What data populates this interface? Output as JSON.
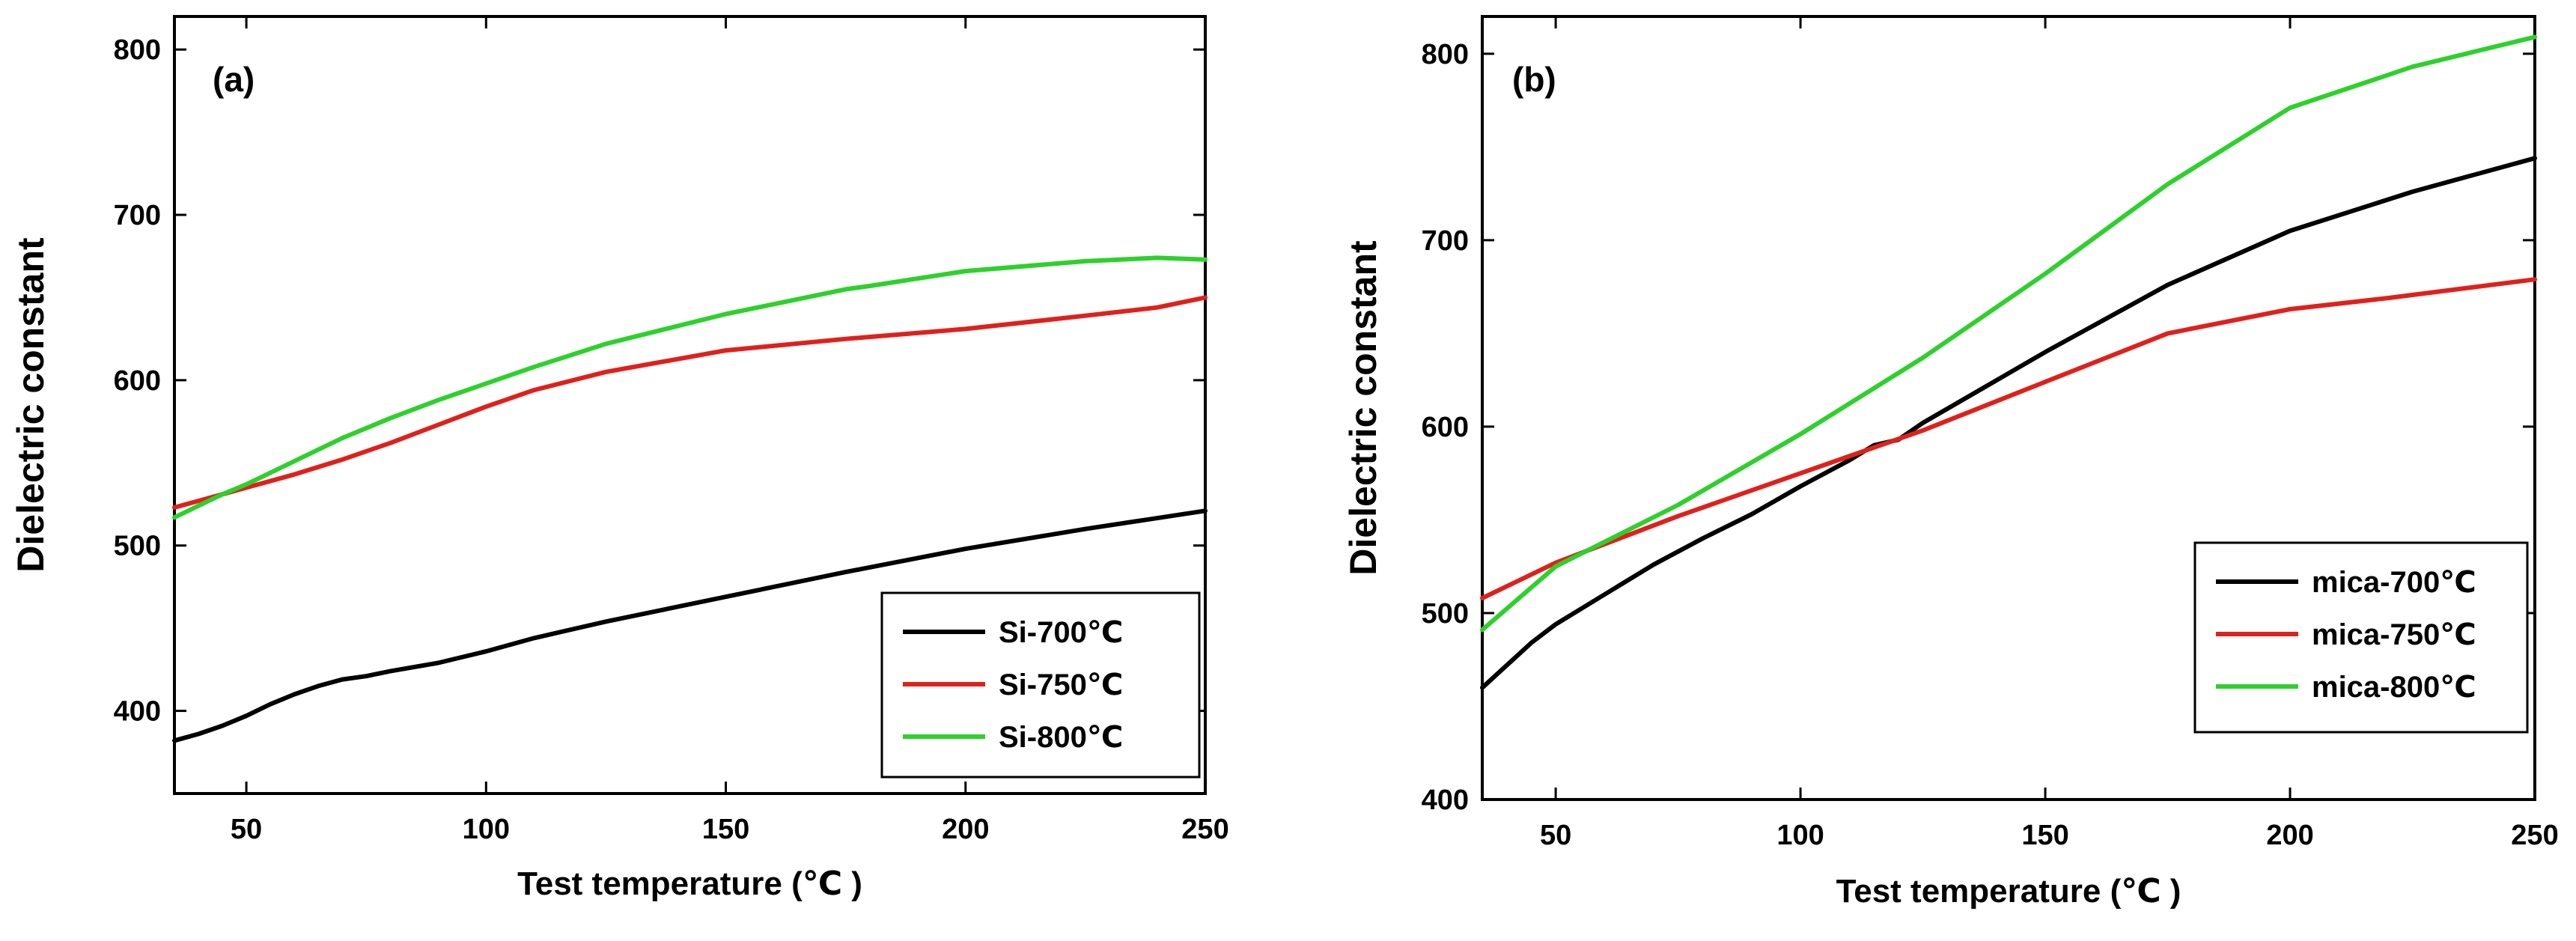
{
  "chart_data": [
    {
      "type": "line",
      "panel_label": "(a)",
      "xlabel": "Test temperature (℃ )",
      "ylabel": "Dielectric constant",
      "xlim": [
        35,
        250
      ],
      "ylim": [
        350,
        820
      ],
      "xticks": [
        50,
        100,
        150,
        200,
        250
      ],
      "yticks": [
        400,
        500,
        600,
        700,
        800
      ],
      "legend_position": "bottom-right",
      "series": [
        {
          "name": "Si-700℃",
          "color": "#000000",
          "x": [
            35,
            40,
            45,
            50,
            55,
            60,
            65,
            70,
            75,
            80,
            90,
            100,
            110,
            125,
            150,
            175,
            200,
            225,
            250
          ],
          "y": [
            382,
            386,
            391,
            397,
            404,
            410,
            415,
            419,
            421,
            424,
            429,
            436,
            444,
            454,
            469,
            484,
            498,
            510,
            521
          ]
        },
        {
          "name": "Si-750℃",
          "color": "#e0201b",
          "x": [
            35,
            40,
            45,
            50,
            60,
            70,
            80,
            90,
            100,
            110,
            125,
            150,
            175,
            200,
            225,
            240,
            250
          ],
          "y": [
            523,
            527,
            531,
            535,
            543,
            552,
            562,
            573,
            584,
            594,
            605,
            618,
            625,
            631,
            639,
            644,
            650
          ]
        },
        {
          "name": "Si-800℃",
          "color": "#2dd12b",
          "x": [
            35,
            40,
            45,
            50,
            60,
            70,
            80,
            90,
            100,
            110,
            125,
            150,
            175,
            180,
            200,
            225,
            240,
            250
          ],
          "y": [
            517,
            524,
            531,
            537,
            551,
            565,
            577,
            588,
            598,
            608,
            622,
            640,
            655,
            657,
            666,
            672,
            674,
            673
          ]
        }
      ]
    },
    {
      "type": "line",
      "panel_label": "(b)",
      "xlabel": "Test temperature (℃ )",
      "ylabel": "Dielectric constant",
      "xlim": [
        35,
        250
      ],
      "ylim": [
        400,
        820
      ],
      "xticks": [
        50,
        100,
        150,
        200,
        250
      ],
      "yticks": [
        400,
        500,
        600,
        700,
        800
      ],
      "legend_position": "bottom-right",
      "series": [
        {
          "name": "mica-700℃",
          "color": "#000000",
          "x": [
            35,
            40,
            45,
            50,
            60,
            70,
            80,
            90,
            100,
            110,
            115,
            120,
            125,
            150,
            175,
            200,
            225,
            250
          ],
          "y": [
            460,
            472,
            484,
            494,
            510,
            526,
            540,
            553,
            568,
            582,
            590,
            593,
            602,
            640,
            676,
            705,
            726,
            744
          ]
        },
        {
          "name": "mica-750℃",
          "color": "#e0201b",
          "x": [
            35,
            50,
            75,
            100,
            125,
            150,
            175,
            200,
            220,
            250
          ],
          "y": [
            508,
            527,
            552,
            575,
            598,
            624,
            650,
            663,
            669,
            679
          ]
        },
        {
          "name": "mica-800℃",
          "color": "#2dd12b",
          "x": [
            35,
            50,
            75,
            100,
            125,
            150,
            175,
            200,
            225,
            250
          ],
          "y": [
            491,
            525,
            558,
            596,
            637,
            682,
            730,
            771,
            793,
            809
          ]
        }
      ]
    }
  ]
}
